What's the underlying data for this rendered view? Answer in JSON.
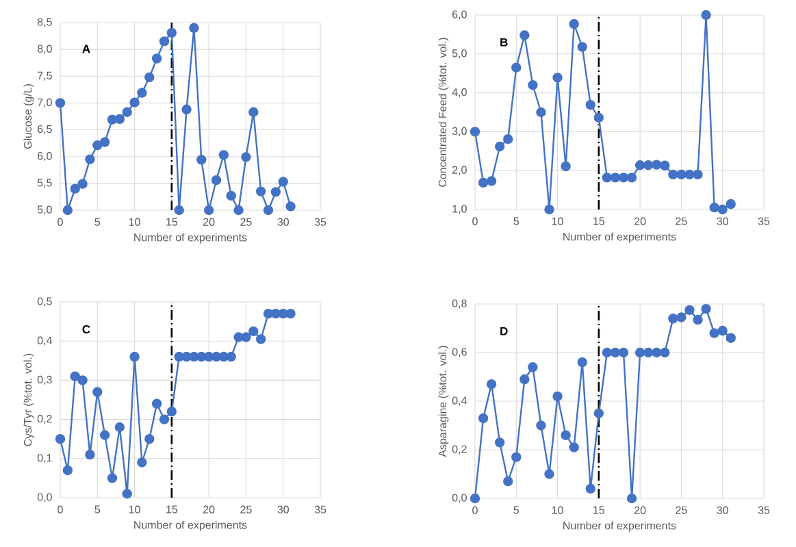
{
  "chart_data": [
    {
      "type": "line",
      "xlabel": "Number of experiments",
      "ylabel": "Glucose (g/L)",
      "annotations": [
        "A"
      ],
      "x": [
        0,
        1,
        2,
        3,
        4,
        5,
        6,
        7,
        8,
        9,
        10,
        11,
        12,
        13,
        14,
        15,
        16,
        17,
        18,
        19,
        20,
        21,
        22,
        23,
        24,
        25,
        26,
        27,
        28,
        29,
        30,
        31
      ],
      "series": [
        {
          "color": "#4472c4",
          "values": [
            7.0,
            5.0,
            5.4,
            5.49,
            5.95,
            6.21,
            6.27,
            6.69,
            6.7,
            6.83,
            7.01,
            7.19,
            7.48,
            7.83,
            8.15,
            8.31,
            5.0,
            6.88,
            8.4,
            5.94,
            5.0,
            5.56,
            6.03,
            5.27,
            5.0,
            5.99,
            6.83,
            5.35,
            5.0,
            5.34,
            5.53,
            5.07
          ]
        }
      ],
      "xlim": [
        0,
        35
      ],
      "xticks": [
        0,
        5,
        10,
        15,
        20,
        25,
        30,
        35
      ],
      "ylim": [
        5.0,
        8.5
      ],
      "yticks": [
        {
          "value": 5.0,
          "label": "5,0"
        },
        {
          "value": 5.5,
          "label": "5,5"
        },
        {
          "value": 6.0,
          "label": "6,0"
        },
        {
          "value": 6.5,
          "label": "6,5"
        },
        {
          "value": 7.0,
          "label": "7,0"
        },
        {
          "value": 7.5,
          "label": "7,5"
        },
        {
          "value": 8.0,
          "label": "8,0"
        },
        {
          "value": 8.5,
          "label": "8,5"
        }
      ],
      "ref_lines": [
        {
          "axis": "x",
          "value": 15,
          "color": "#000000"
        }
      ],
      "grid": true,
      "marker": "circle",
      "line_style": "solid"
    },
    {
      "type": "line",
      "xlabel": "Number of experiments",
      "ylabel": "Concentrated Feed (%tot. vol.)",
      "annotations": [
        "B"
      ],
      "x": [
        0,
        1,
        2,
        3,
        4,
        5,
        6,
        7,
        8,
        9,
        10,
        11,
        12,
        13,
        14,
        15,
        16,
        17,
        18,
        19,
        20,
        21,
        22,
        23,
        24,
        25,
        26,
        27,
        28,
        29,
        30,
        31
      ],
      "series": [
        {
          "color": "#4472c4",
          "values": [
            3.0,
            1.69,
            1.73,
            2.62,
            2.81,
            4.65,
            5.48,
            4.2,
            3.5,
            1.0,
            4.39,
            2.11,
            5.77,
            5.18,
            3.69,
            3.36,
            1.82,
            1.82,
            1.82,
            1.82,
            2.14,
            2.14,
            2.15,
            2.13,
            1.9,
            1.9,
            1.9,
            1.9,
            6.0,
            1.05,
            1.0,
            1.14
          ]
        }
      ],
      "xlim": [
        0,
        35
      ],
      "xticks": [
        0,
        5,
        10,
        15,
        20,
        25,
        30,
        35
      ],
      "ylim": [
        1.0,
        6.0
      ],
      "yticks": [
        {
          "value": 1.0,
          "label": "1,0"
        },
        {
          "value": 2.0,
          "label": "2,0"
        },
        {
          "value": 3.0,
          "label": "3,0"
        },
        {
          "value": 4.0,
          "label": "4,0"
        },
        {
          "value": 5.0,
          "label": "5,0"
        },
        {
          "value": 6.0,
          "label": "6,0"
        }
      ],
      "ref_lines": [
        {
          "axis": "x",
          "value": 15,
          "color": "#000000"
        }
      ],
      "grid": true,
      "marker": "circle",
      "line_style": "solid"
    },
    {
      "type": "line",
      "xlabel": "Number of experiments",
      "ylabel": "Cys/Tyr (%tot. vol.)",
      "annotations": [
        "C"
      ],
      "x": [
        0,
        1,
        2,
        3,
        4,
        5,
        6,
        7,
        8,
        9,
        10,
        11,
        12,
        13,
        14,
        15,
        16,
        17,
        18,
        19,
        20,
        21,
        22,
        23,
        24,
        25,
        26,
        27,
        28,
        29,
        30,
        31
      ],
      "series": [
        {
          "color": "#4472c4",
          "values": [
            0.15,
            0.07,
            0.31,
            0.3,
            0.11,
            0.27,
            0.16,
            0.05,
            0.18,
            0.01,
            0.36,
            0.09,
            0.15,
            0.24,
            0.2,
            0.22,
            0.36,
            0.36,
            0.36,
            0.36,
            0.36,
            0.36,
            0.36,
            0.36,
            0.41,
            0.41,
            0.425,
            0.405,
            0.47,
            0.47,
            0.47,
            0.47
          ]
        }
      ],
      "xlim": [
        0,
        35
      ],
      "xticks": [
        0,
        5,
        10,
        15,
        20,
        25,
        30,
        35
      ],
      "ylim": [
        0.0,
        0.5
      ],
      "yticks": [
        {
          "value": 0.0,
          "label": "0,0"
        },
        {
          "value": 0.1,
          "label": "0,1"
        },
        {
          "value": 0.2,
          "label": "0,2"
        },
        {
          "value": 0.3,
          "label": "0,3"
        },
        {
          "value": 0.4,
          "label": "0,4"
        },
        {
          "value": 0.5,
          "label": "0,5"
        }
      ],
      "ref_lines": [
        {
          "axis": "x",
          "value": 15,
          "color": "#000000"
        }
      ],
      "grid": true,
      "marker": "circle",
      "line_style": "solid"
    },
    {
      "type": "line",
      "xlabel": "Number of experiments",
      "ylabel": "Asparagine (%tot. vol.)",
      "annotations": [
        "D"
      ],
      "x": [
        0,
        1,
        2,
        3,
        4,
        5,
        6,
        7,
        8,
        9,
        10,
        11,
        12,
        13,
        14,
        15,
        16,
        17,
        18,
        19,
        20,
        21,
        22,
        23,
        24,
        25,
        26,
        27,
        28,
        29,
        30,
        31
      ],
      "series": [
        {
          "color": "#4472c4",
          "values": [
            0.0,
            0.33,
            0.47,
            0.23,
            0.07,
            0.17,
            0.49,
            0.54,
            0.3,
            0.1,
            0.42,
            0.26,
            0.21,
            0.56,
            0.04,
            0.35,
            0.6,
            0.6,
            0.6,
            0.0,
            0.6,
            0.6,
            0.6,
            0.6,
            0.74,
            0.745,
            0.775,
            0.735,
            0.78,
            0.68,
            0.69,
            0.66
          ]
        }
      ],
      "xlim": [
        0,
        35
      ],
      "xticks": [
        0,
        5,
        10,
        15,
        20,
        25,
        30,
        35
      ],
      "ylim": [
        0.0,
        0.8
      ],
      "yticks": [
        {
          "value": 0.0,
          "label": "0,0"
        },
        {
          "value": 0.2,
          "label": "0,2"
        },
        {
          "value": 0.4,
          "label": "0,4"
        },
        {
          "value": 0.6,
          "label": "0,6"
        },
        {
          "value": 0.8,
          "label": "0,8"
        }
      ],
      "ref_lines": [
        {
          "axis": "x",
          "value": 15,
          "color": "#000000"
        }
      ],
      "grid": true,
      "marker": "circle",
      "line_style": "solid"
    }
  ]
}
